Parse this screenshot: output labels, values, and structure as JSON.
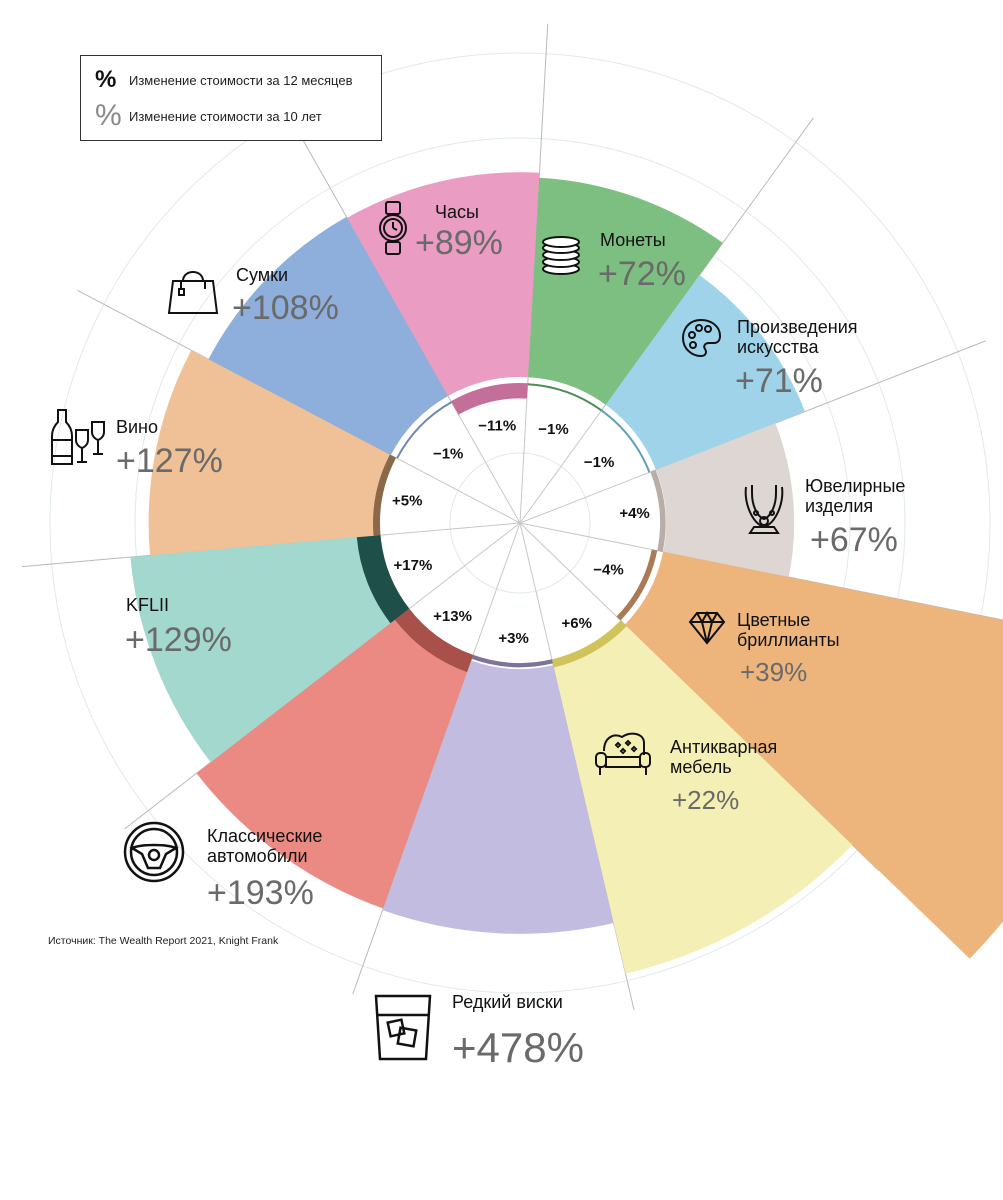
{
  "legend": {
    "symbol": "%",
    "item_12m": "Изменение стоимости за 12 месяцев",
    "item_10y": "Изменение стоимости за 10 лет"
  },
  "source": "Источник: The Wealth Report 2021, Knight Frank",
  "chart_data": {
    "type": "radial-bar",
    "series": [
      {
        "name": "Изменение стоимости за 12 месяцев",
        "unit": "%"
      },
      {
        "name": "Изменение стоимости за 10 лет",
        "unit": "%"
      }
    ],
    "categories": [
      {
        "name": "Часы",
        "change_12m": 5,
        "label_12m": "+5%",
        "change_10y": 89,
        "label_10y": "+89%",
        "color": "#f0c196",
        "dark": "#8a6848",
        "icon": "watch-icon"
      },
      {
        "name": "Монеты",
        "change_12m": -1,
        "label_12m": "−1%",
        "change_10y": 72,
        "label_10y": "+72%",
        "color": "#8eaedb",
        "dark": "#6f89b3",
        "icon": "coins-icon"
      },
      {
        "name": "Произведения\nискусства",
        "change_12m": -11,
        "label_12m": "−11%",
        "change_10y": 71,
        "label_10y": "+71%",
        "color": "#ea9cc3",
        "dark": "#c46f9a",
        "icon": "palette-icon"
      },
      {
        "name": "Ювелирные\nизделия",
        "change_12m": -1,
        "label_12m": "−1%",
        "change_10y": 67,
        "label_10y": "+67%",
        "color": "#7cbf80",
        "dark": "#4e8f55",
        "icon": "necklace-icon"
      },
      {
        "name": "Цветные\nбриллианты",
        "change_12m": -1,
        "label_12m": "−1%",
        "change_10y": 39,
        "label_10y": "+39%",
        "color": "#9ed3ea",
        "dark": "#5f9fbd",
        "icon": "diamond-icon"
      },
      {
        "name": "Антикварная\nмебель",
        "change_12m": 4,
        "label_12m": "+4%",
        "change_10y": 22,
        "label_10y": "+22%",
        "color": "#ddd6d2",
        "dark": "#b9ada5",
        "icon": "sofa-icon"
      },
      {
        "name": "Редкий виски",
        "change_12m": -4,
        "label_12m": "−4%",
        "change_10y": 478,
        "label_10y": "+478%",
        "color": "#edb47c",
        "dark": "#a97a55",
        "icon": "whisky-glass-icon"
      },
      {
        "name": "Классические\nавтомобили",
        "change_12m": 6,
        "label_12m": "+6%",
        "change_10y": 193,
        "label_10y": "+193%",
        "color": "#f4efb4",
        "dark": "#cfc35a",
        "icon": "steering-wheel-icon"
      },
      {
        "name": "KFLII",
        "change_12m": 3,
        "label_12m": "+3%",
        "change_10y": 129,
        "label_10y": "+129%",
        "color": "#c2bde0",
        "dark": "#7d7299",
        "icon": ""
      },
      {
        "name": "Вино",
        "change_12m": 13,
        "label_12m": "+13%",
        "change_10y": 127,
        "label_10y": "+127%",
        "color": "#ea8a82",
        "dark": "#a8514b",
        "icon": "wine-icon"
      },
      {
        "name": "Сумки",
        "change_12m": 17,
        "label_12m": "+17%",
        "change_10y": 108,
        "label_10y": "+108%",
        "color": "#a2d8cd",
        "dark": "#1e4f48",
        "icon": "handbag-icon"
      }
    ]
  }
}
